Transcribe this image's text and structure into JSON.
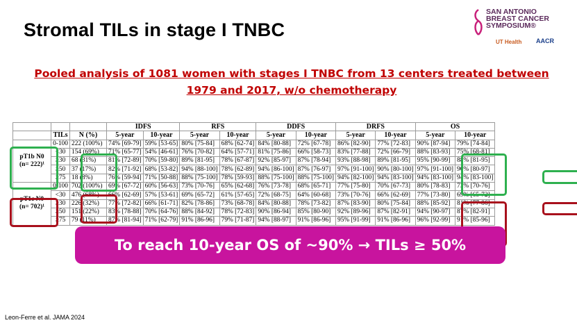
{
  "title": "Stromal TILs in stage I TNBC",
  "logo": {
    "line1": "SAN ANTONIO",
    "line2": "BREAST CANCER",
    "line3": "SYMPOSIUM®",
    "ut": "UT Health",
    "aacr": "AACR"
  },
  "subtitle": {
    "line1": "Pooled analysis of 1081 women with stages I TNBC from 13 centers treated between",
    "line2": "1979 and 2017, w/o chemotherapy"
  },
  "table": {
    "header1": [
      "",
      "",
      "",
      "IDFS",
      "RFS",
      "DDFS",
      "DRFS",
      "OS"
    ],
    "header2": [
      "",
      "TILs",
      "N (%)",
      "5-year",
      "10-year",
      "5-year",
      "10-year",
      "5-year",
      "10-year",
      "5-year",
      "10-year",
      "5-year",
      "10-year"
    ],
    "group1": {
      "label1": "pT1b N0",
      "label2": "(n= 222)¹",
      "rows": [
        [
          "0-100",
          "222 (100%)",
          "74% [69-79]",
          "59% [53-65]",
          "80% [75-84]",
          "68% [62-74]",
          "84% [80-88]",
          "72% [67-78]",
          "86% [82-90]",
          "77% [72-83]",
          "90% [87-94]",
          "79% [74-84]"
        ],
        [
          "<30",
          "154 (69%)",
          "71% [65-77]",
          "54% [46-61]",
          "76% [70-82]",
          "64% [57-71]",
          "81% [75-86]",
          "66% [58-73]",
          "83% [77-88]",
          "72% [66-79]",
          "88% [83-93]",
          "75% [68-81]"
        ],
        [
          "≥30",
          "68 (31%)",
          "81% [72-89]",
          "70% [59-80]",
          "89% [81-95]",
          "78% [67-87]",
          "92% [85-97]",
          "87% [78-94]",
          "93% [88-98]",
          "89% [81-95]",
          "95% [90-99]",
          "88% [81-95]"
        ],
        [
          "≥50",
          "37 (17%)",
          "82% [71-92]",
          "68% [53-82]",
          "94% [88-100]",
          "78% [62-89]",
          "94% [86-100]",
          "87% [76-97]",
          "97% [91-100]",
          "90% [80-100]",
          "97% [91-100]",
          "90% [80-97]"
        ],
        [
          "≥75",
          "18 (8%)",
          "76% [59-94]",
          "71% [50-88]",
          "88% [75-100]",
          "78% [59-93]",
          "88% [75-100]",
          "88% [75-100]",
          "94% [82-100]",
          "94% [83-100]",
          "94% [83-100]",
          "94% [83-100]"
        ]
      ]
    },
    "group2": {
      "label1": "pT1c N0",
      "label2": "(n= 702)¹",
      "rows": [
        [
          "0-100",
          "702 (100%)",
          "69% [67-72]",
          "60% [56-63]",
          "73% [70-76]",
          "65% [62-68]",
          "76% [73-78]",
          "68% [65-71]",
          "77% [75-80]",
          "70% [67-73]",
          "80% [78-83]",
          "73% [70-76]"
        ],
        [
          "<30",
          "476 (68%)",
          "66% [62-69]",
          "57% [53-61]",
          "69% [65-72]",
          "61% [57-65]",
          "72% [68-75]",
          "64% [60-68]",
          "73% [70-76]",
          "66% [62-69]",
          "77% [73-80]",
          "69% [65-72]"
        ],
        [
          "≥30",
          "226 (32%)",
          "77% [72-82]",
          "66% [61-71]",
          "82% [78-86]",
          "73% [68-78]",
          "84% [80-88]",
          "78% [73-82]",
          "87% [83-90]",
          "80% [75-84]",
          "88% [85-92]",
          "81% [77-86]"
        ],
        [
          "≥50",
          "151 (22%)",
          "83% [78-88]",
          "70% [64-76]",
          "88% [84-92]",
          "78% [72-83]",
          "90% [86-94]",
          "85% [80-90]",
          "92% [89-96]",
          "87% [82-91]",
          "94% [90-97]",
          "87% [82-91]"
        ],
        [
          "≥75",
          "79 (11%)",
          "87% [81-94]",
          "71% [62-79]",
          "91% [86-96]",
          "79% [71-87]",
          "94% [88-97]",
          "91% [86-96]",
          "95% [91-99]",
          "91% [86-96]",
          "96% [92-99]",
          "91% [85-96]"
        ]
      ]
    }
  },
  "banner": "To reach 10-year OS of ~90% → TILs ≥ 50%",
  "citation": "Leon-Ferre et al. JAMA 2024",
  "colors": {
    "title": "#000000",
    "subtitle": "#c00000",
    "banner_bg": "#c8149e",
    "green_box": "#2eb04f",
    "red_box": "#a8101c"
  }
}
